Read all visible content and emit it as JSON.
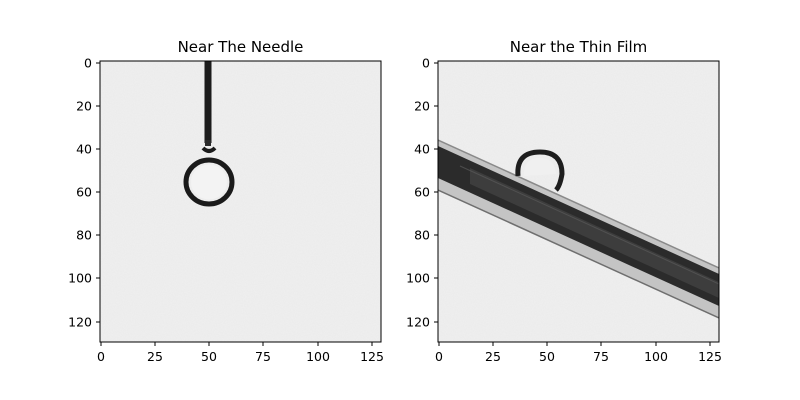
{
  "panels": [
    {
      "title": "Near The Needle",
      "x_ticks": [
        "0",
        "25",
        "50",
        "75",
        "100",
        "125"
      ],
      "y_ticks": [
        "0",
        "20",
        "40",
        "60",
        "80",
        "100",
        "120"
      ],
      "image_content": "pendant droplet hanging from a vertical needle on a light grey background"
    },
    {
      "title": "Near the Thin Film",
      "x_ticks": [
        "0",
        "25",
        "50",
        "75",
        "100",
        "125"
      ],
      "y_ticks": [
        "0",
        "20",
        "40",
        "60",
        "80",
        "100",
        "120"
      ],
      "image_content": "small droplet sitting on top of a diagonal dark thin film strip"
    }
  ],
  "colors": {
    "image_background": "#efefef",
    "dark_feature": "#1c1c1c",
    "film_edge": "#bdbdbd",
    "axes": "#000000"
  }
}
